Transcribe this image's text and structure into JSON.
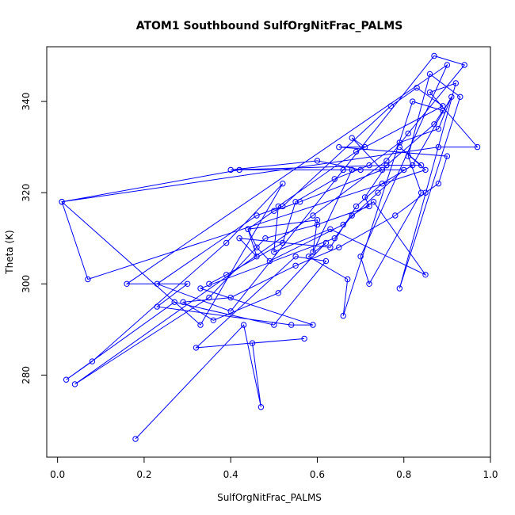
{
  "chart_data": {
    "type": "line",
    "title": "ATOM1 Southbound SulfOrgNitFrac_PALMS",
    "xlabel": "SulfOrgNitFrac_PALMS",
    "ylabel": "Theta (K)",
    "xlim": [
      -0.025,
      1.0
    ],
    "ylim": [
      262,
      352
    ],
    "x_ticks": [
      0.0,
      0.2,
      0.4,
      0.6,
      0.8,
      1.0
    ],
    "x_tick_labels": [
      "0.0",
      "0.2",
      "0.4",
      "0.6",
      "0.8",
      "1.0"
    ],
    "y_ticks": [
      280,
      300,
      320,
      340
    ],
    "y_tick_labels": [
      "280",
      "300",
      "320",
      "340"
    ],
    "grid": false,
    "legend": "none",
    "series": [
      {
        "color": "#0000ff",
        "marker": "open-circle",
        "x": [
          0.18,
          0.43,
          0.47,
          0.45,
          0.57,
          0.32,
          0.55,
          0.62,
          0.5,
          0.27,
          0.02,
          0.08,
          0.39,
          0.52,
          0.33,
          0.01,
          0.42,
          0.66,
          0.7,
          0.6,
          0.4,
          0.76,
          0.84,
          0.79,
          0.85,
          0.07,
          0.01,
          0.88,
          0.97,
          0.86,
          0.92,
          0.79,
          0.93,
          0.86,
          0.81,
          0.84,
          0.72,
          0.7,
          0.9,
          0.16,
          0.3,
          0.23,
          0.54,
          0.59,
          0.33,
          0.64,
          0.68,
          0.73,
          0.85,
          0.63,
          0.5,
          0.51,
          0.69,
          0.89,
          0.83,
          0.77,
          0.52,
          0.46,
          0.23,
          0.4,
          0.87,
          0.94,
          0.81,
          0.76,
          0.59,
          0.04,
          0.35,
          0.48,
          0.6,
          0.72,
          0.71,
          0.76,
          0.87,
          0.89,
          0.82,
          0.66,
          0.67,
          0.58,
          0.62,
          0.51,
          0.36,
          0.29,
          0.4,
          0.55,
          0.65,
          0.78,
          0.85,
          0.88,
          0.9,
          0.65,
          0.71,
          0.68,
          0.75,
          0.56,
          0.5,
          0.44,
          0.46,
          0.49,
          0.66,
          0.74,
          0.8,
          0.68,
          0.59,
          0.6,
          0.44,
          0.46,
          0.42,
          0.63,
          0.69,
          0.75,
          0.82,
          0.91,
          0.88,
          0.79,
          0.72,
          0.64,
          0.55,
          0.52,
          0.39,
          0.35
        ],
        "y": [
          266,
          291,
          273,
          287,
          288,
          286,
          306,
          305,
          291,
          296,
          279,
          283,
          309,
          322,
          291,
          318,
          325,
          325,
          325,
          327,
          325,
          326,
          326,
          330,
          325,
          301,
          318,
          330,
          330,
          342,
          344,
          299,
          341,
          346,
          328,
          320,
          300,
          306,
          348,
          300,
          300,
          295,
          291,
          291,
          299,
          310,
          315,
          318,
          302,
          312,
          307,
          317,
          329,
          339,
          343,
          339,
          317,
          315,
          300,
          294,
          350,
          348,
          333,
          327,
          315,
          278,
          297,
          310,
          313,
          317,
          319,
          326,
          335,
          338,
          340,
          293,
          301,
          306,
          309,
          298,
          292,
          296,
          297,
          304,
          308,
          315,
          320,
          322,
          328,
          330,
          330,
          332,
          325,
          318,
          316,
          312,
          308,
          305,
          313,
          320,
          325,
          325,
          307,
          314,
          312,
          306,
          310,
          308,
          317,
          322,
          326,
          341,
          334,
          331,
          326,
          323,
          318,
          309,
          302,
          300
        ]
      }
    ]
  }
}
